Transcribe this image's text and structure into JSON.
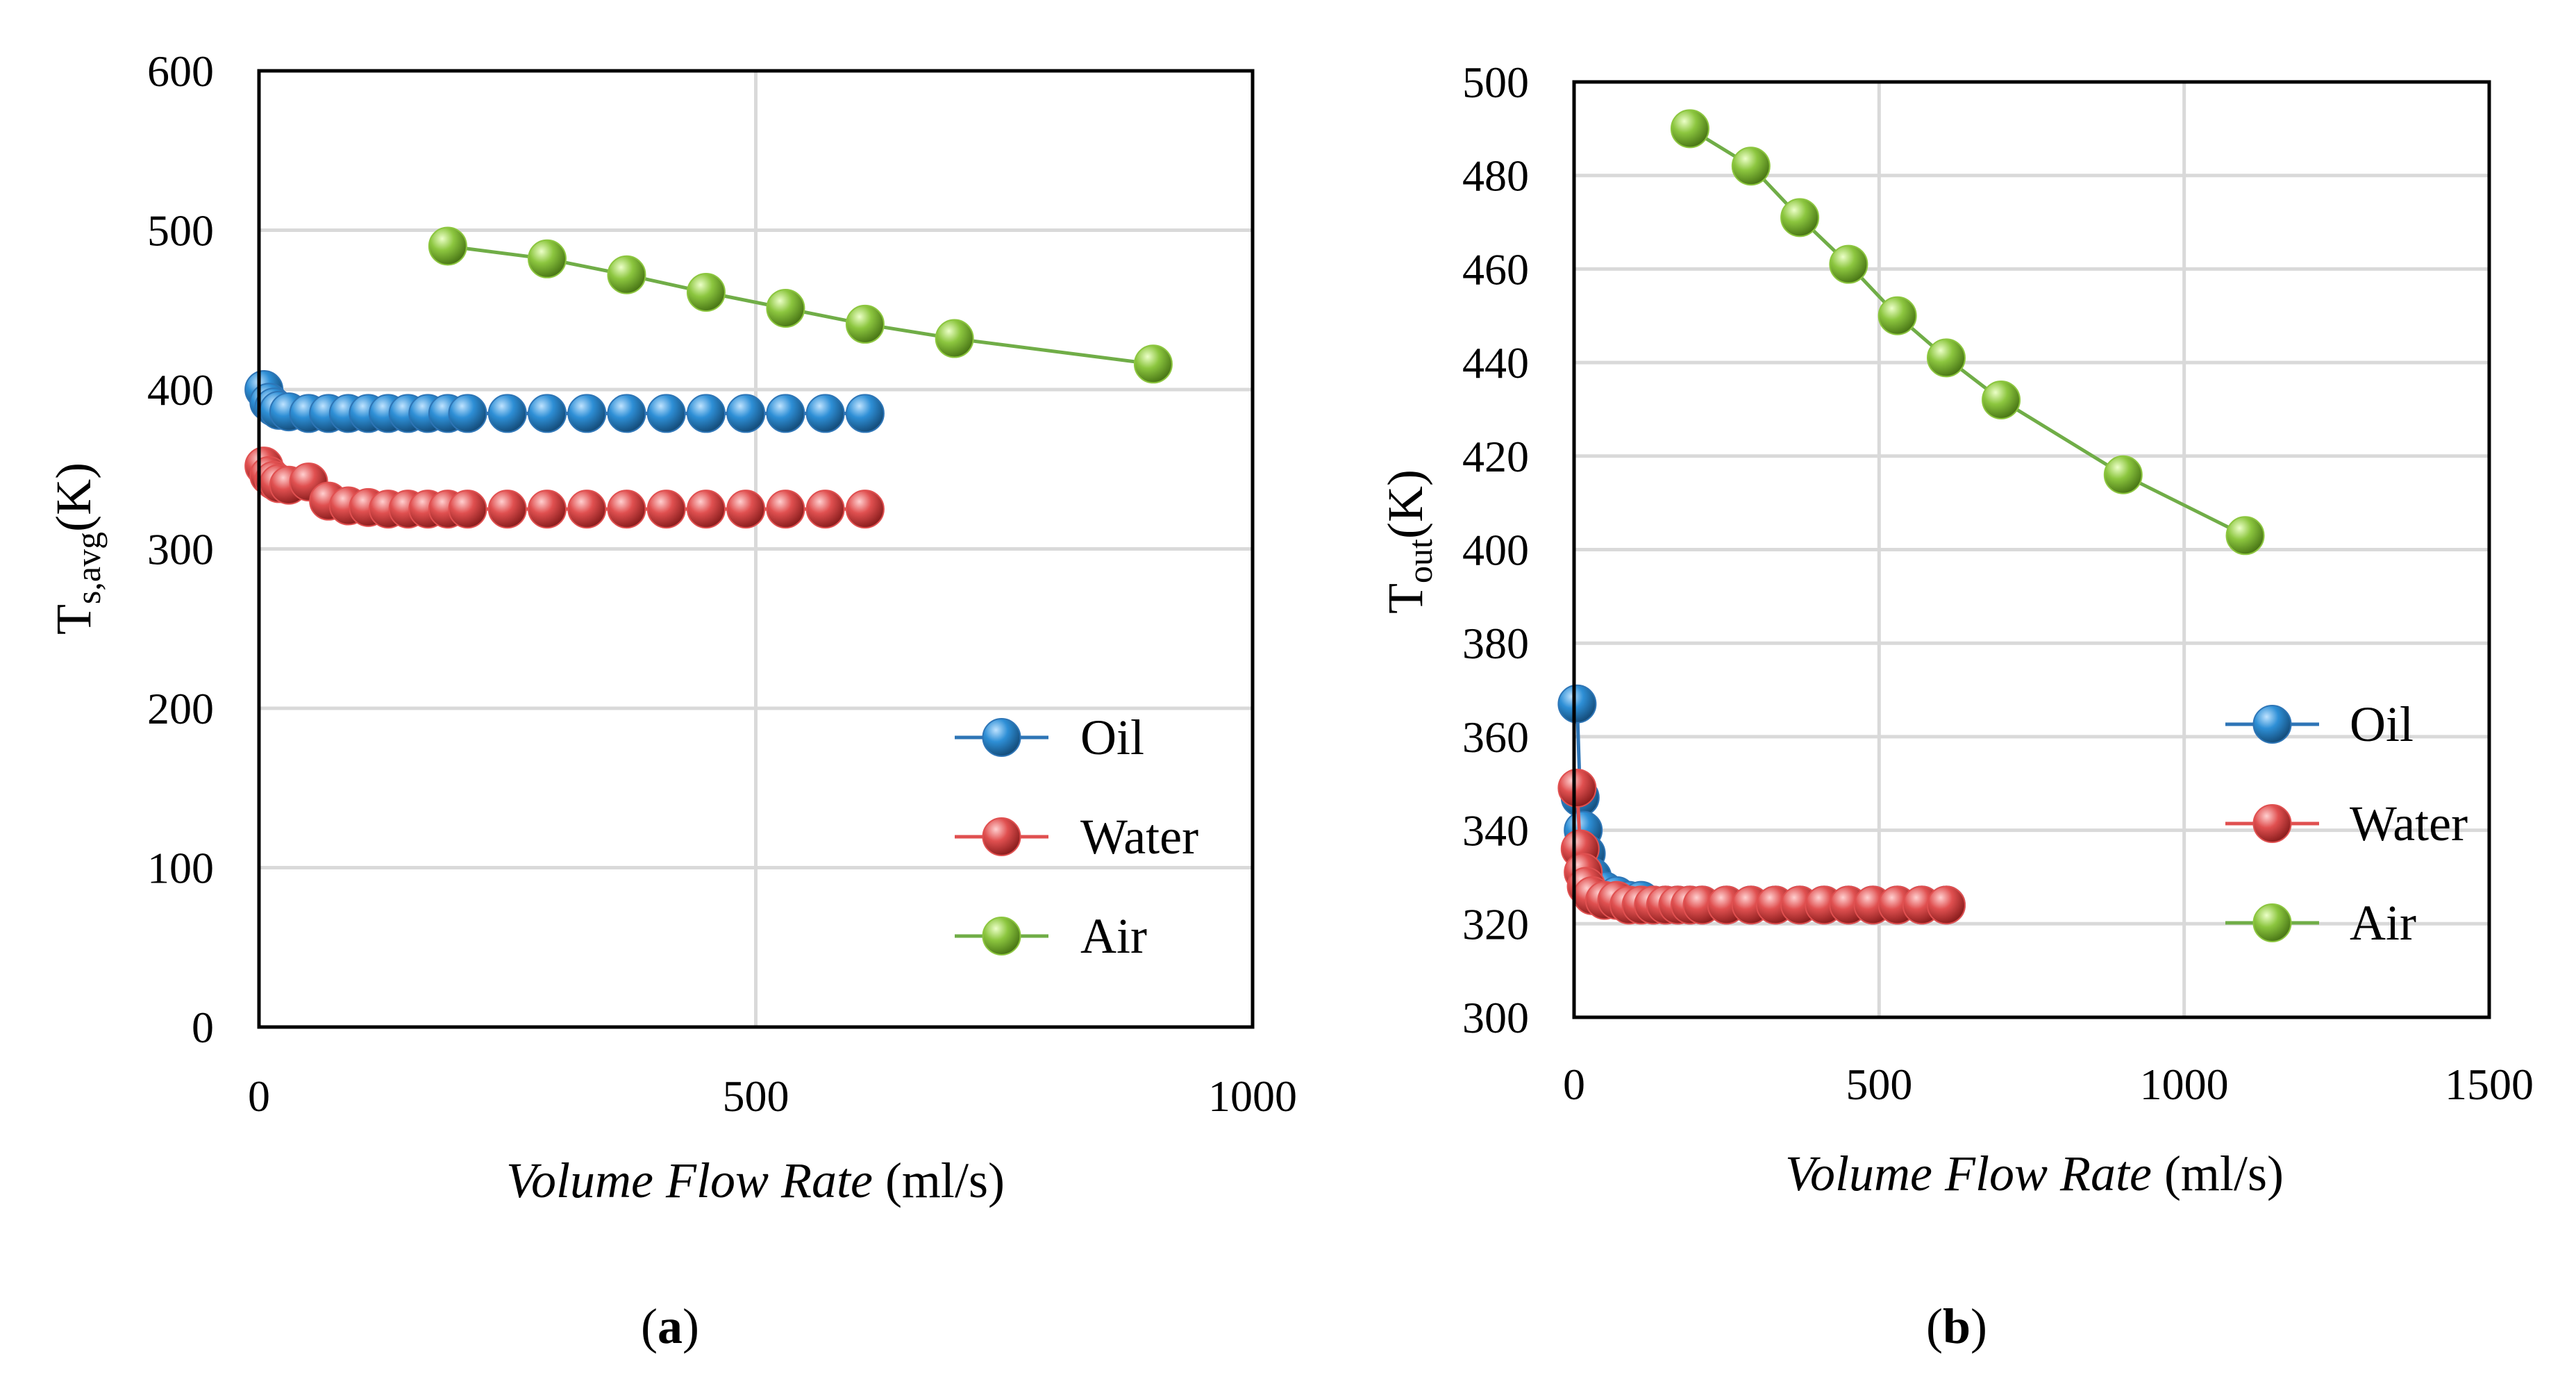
{
  "chart_data": [
    {
      "type": "line",
      "panel_label": "a",
      "xlabel_italic": "Volume Flow Rate",
      "xlabel_unit": " (ml/s)",
      "ylabel_main": "T",
      "ylabel_sub": "s,avg",
      "ylabel_unit": "(K)",
      "xlim": [
        0,
        1000
      ],
      "ylim": [
        0,
        600
      ],
      "x_ticks": [
        0,
        500,
        1000
      ],
      "y_ticks": [
        0,
        100,
        200,
        300,
        400,
        500,
        600
      ],
      "grid": true,
      "legend_position": "lower-right",
      "series": [
        {
          "name": "Oil",
          "color": "#2e75b6",
          "line_color": "#2e75b6",
          "x": [
            5,
            10,
            15,
            20,
            30,
            50,
            70,
            90,
            110,
            130,
            150,
            170,
            190,
            210,
            250,
            290,
            330,
            370,
            410,
            450,
            490,
            530,
            570,
            610
          ],
          "y": [
            400,
            392,
            389,
            387,
            386,
            385,
            385,
            385,
            385,
            385,
            385,
            385,
            385,
            385,
            385,
            385,
            385,
            385,
            385,
            385,
            385,
            385,
            385,
            385
          ]
        },
        {
          "name": "Water",
          "color": "#e05050",
          "line_color": "#e05050",
          "x": [
            5,
            10,
            15,
            20,
            30,
            50,
            70,
            90,
            110,
            130,
            150,
            170,
            190,
            210,
            250,
            290,
            330,
            370,
            410,
            450,
            490,
            530,
            570,
            610
          ],
          "y": [
            352,
            346,
            343,
            341,
            340,
            342,
            330,
            327,
            326,
            325,
            325,
            325,
            325,
            325,
            325,
            325,
            325,
            325,
            325,
            325,
            325,
            325,
            325,
            325
          ]
        },
        {
          "name": "Air",
          "color": "#8cc63f",
          "line_color": "#70ad47",
          "x": [
            190,
            290,
            370,
            450,
            530,
            610,
            700,
            900
          ],
          "y": [
            490,
            482,
            472,
            461,
            451,
            441,
            432,
            416
          ]
        }
      ]
    },
    {
      "type": "line",
      "panel_label": "b",
      "xlabel_italic": "Volume Flow Rate",
      "xlabel_unit": " (ml/s)",
      "ylabel_main": "T",
      "ylabel_sub": "out",
      "ylabel_unit": "(K)",
      "xlim": [
        0,
        1500
      ],
      "ylim": [
        300,
        500
      ],
      "x_ticks": [
        0,
        500,
        1000,
        1500
      ],
      "y_ticks": [
        300,
        320,
        340,
        360,
        380,
        400,
        420,
        440,
        460,
        480,
        500
      ],
      "grid": true,
      "legend_position": "lower-right",
      "series": [
        {
          "name": "Oil",
          "color": "#2e75b6",
          "line_color": "#2e75b6",
          "x": [
            5,
            10,
            15,
            20,
            30,
            50,
            70,
            90,
            110,
            130,
            150,
            170,
            190,
            210,
            250,
            290,
            330,
            370,
            410,
            450,
            490,
            530,
            570,
            610
          ],
          "y": [
            367,
            347,
            340,
            335,
            330,
            327,
            326,
            325,
            325,
            324,
            324,
            324,
            324,
            324,
            324,
            324,
            324,
            324,
            324,
            324,
            324,
            324,
            324,
            324
          ]
        },
        {
          "name": "Water",
          "color": "#e05050",
          "line_color": "#e05050",
          "x": [
            5,
            10,
            15,
            20,
            30,
            50,
            70,
            90,
            110,
            130,
            150,
            170,
            190,
            210,
            250,
            290,
            330,
            370,
            410,
            450,
            490,
            530,
            570,
            610
          ],
          "y": [
            349,
            336,
            331,
            328,
            326,
            325,
            325,
            324,
            324,
            324,
            324,
            324,
            324,
            324,
            324,
            324,
            324,
            324,
            324,
            324,
            324,
            324,
            324,
            324
          ]
        },
        {
          "name": "Air",
          "color": "#8cc63f",
          "line_color": "#70ad47",
          "x": [
            190,
            290,
            370,
            450,
            530,
            610,
            700,
            900,
            1100
          ],
          "y": [
            490,
            482,
            471,
            461,
            450,
            441,
            432,
            416,
            403
          ]
        }
      ]
    }
  ]
}
